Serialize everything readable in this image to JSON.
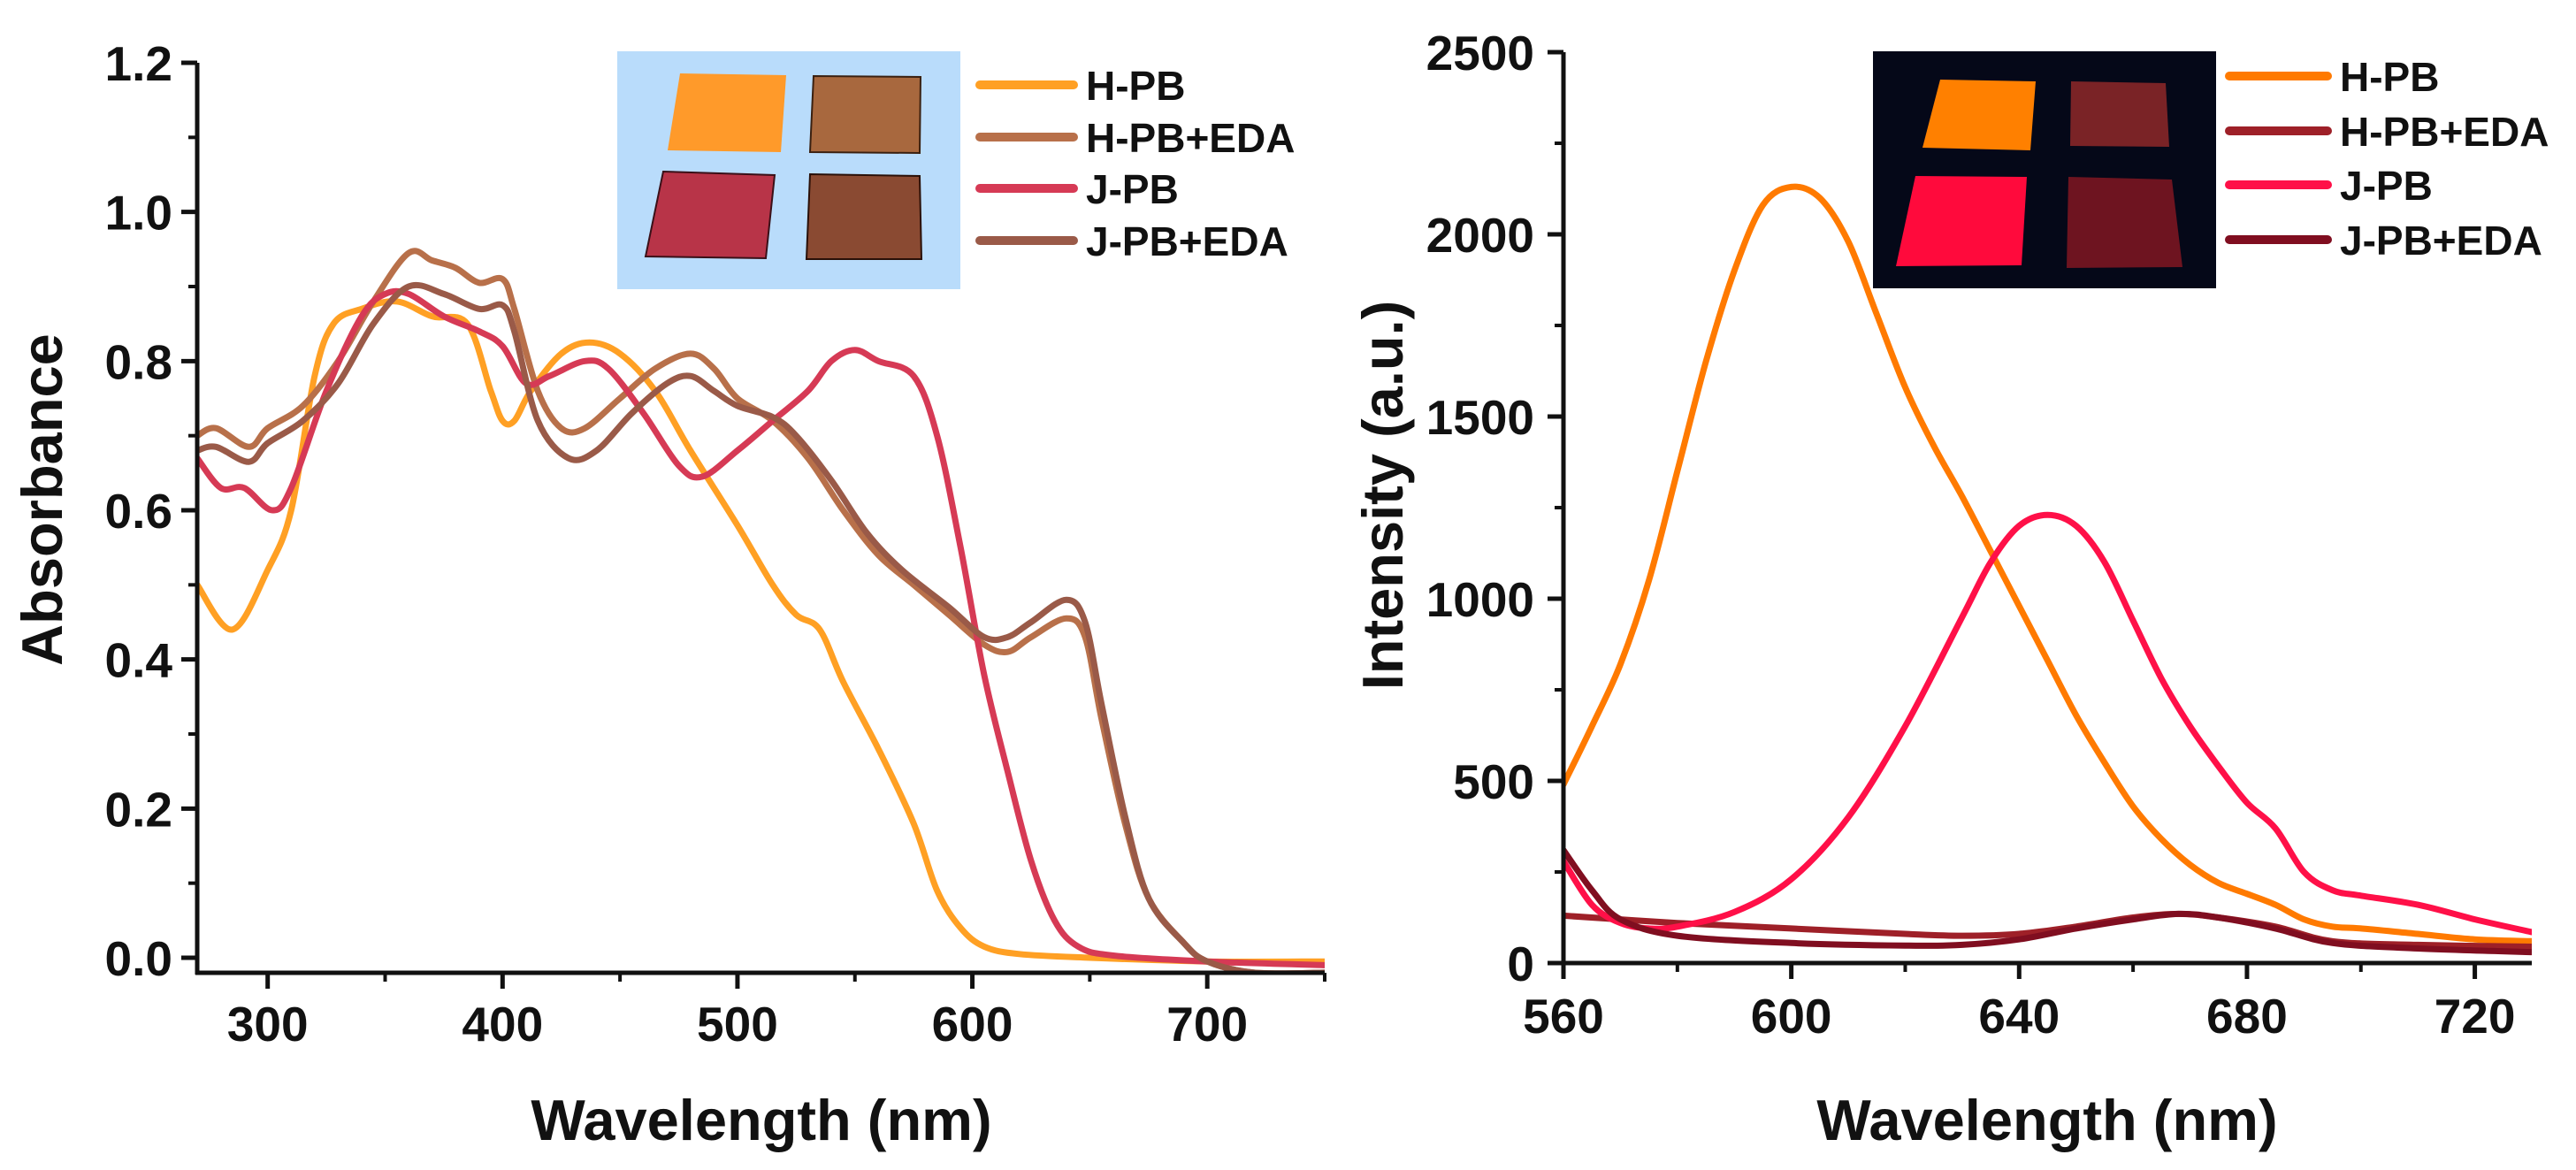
{
  "chart_data": [
    {
      "type": "line",
      "xlabel": "Wavelength (nm)",
      "ylabel": "Absorbance",
      "xlim": [
        270,
        750
      ],
      "ylim": [
        -0.02,
        1.2
      ],
      "xticks": [
        "300",
        "400",
        "500",
        "600",
        "700"
      ],
      "yticks": [
        "0.0",
        "0.2",
        "0.4",
        "0.6",
        "0.8",
        "1.0",
        "1.2"
      ],
      "grid": false,
      "legend_position": "top-right",
      "series": [
        {
          "name": "H-PB",
          "color": "#ffa024",
          "points": [
            [
              270,
              0.5
            ],
            [
              285,
              0.44
            ],
            [
              300,
              0.52
            ],
            [
              310,
              0.6
            ],
            [
              320,
              0.78
            ],
            [
              328,
              0.85
            ],
            [
              340,
              0.87
            ],
            [
              355,
              0.88
            ],
            [
              370,
              0.86
            ],
            [
              385,
              0.85
            ],
            [
              395,
              0.76
            ],
            [
              400,
              0.72
            ],
            [
              405,
              0.72
            ],
            [
              412,
              0.76
            ],
            [
              425,
              0.81
            ],
            [
              437,
              0.825
            ],
            [
              450,
              0.81
            ],
            [
              465,
              0.76
            ],
            [
              480,
              0.68
            ],
            [
              500,
              0.58
            ],
            [
              515,
              0.5
            ],
            [
              525,
              0.46
            ],
            [
              535,
              0.44
            ],
            [
              545,
              0.37
            ],
            [
              560,
              0.28
            ],
            [
              575,
              0.18
            ],
            [
              585,
              0.09
            ],
            [
              595,
              0.04
            ],
            [
              605,
              0.015
            ],
            [
              620,
              0.005
            ],
            [
              650,
              0.0
            ],
            [
              700,
              -0.005
            ],
            [
              750,
              -0.005
            ]
          ]
        },
        {
          "name": "H-PB+EDA",
          "color": "#b8704a",
          "points": [
            [
              270,
              0.7
            ],
            [
              278,
              0.71
            ],
            [
              292,
              0.685
            ],
            [
              300,
              0.71
            ],
            [
              315,
              0.74
            ],
            [
              330,
              0.8
            ],
            [
              345,
              0.88
            ],
            [
              360,
              0.945
            ],
            [
              370,
              0.935
            ],
            [
              380,
              0.925
            ],
            [
              390,
              0.905
            ],
            [
              400,
              0.91
            ],
            [
              405,
              0.87
            ],
            [
              415,
              0.76
            ],
            [
              425,
              0.71
            ],
            [
              435,
              0.71
            ],
            [
              450,
              0.75
            ],
            [
              465,
              0.79
            ],
            [
              480,
              0.81
            ],
            [
              490,
              0.79
            ],
            [
              500,
              0.75
            ],
            [
              515,
              0.72
            ],
            [
              530,
              0.67
            ],
            [
              545,
              0.6
            ],
            [
              560,
              0.54
            ],
            [
              575,
              0.5
            ],
            [
              590,
              0.46
            ],
            [
              605,
              0.42
            ],
            [
              615,
              0.41
            ],
            [
              625,
              0.43
            ],
            [
              640,
              0.455
            ],
            [
              648,
              0.43
            ],
            [
              655,
              0.32
            ],
            [
              665,
              0.18
            ],
            [
              675,
              0.08
            ],
            [
              690,
              0.02
            ],
            [
              700,
              -0.005
            ],
            [
              720,
              -0.02
            ],
            [
              750,
              -0.02
            ]
          ]
        },
        {
          "name": "J-PB",
          "color": "#d63a55",
          "points": [
            [
              270,
              0.67
            ],
            [
              280,
              0.63
            ],
            [
              290,
              0.63
            ],
            [
              302,
              0.6
            ],
            [
              310,
              0.63
            ],
            [
              325,
              0.76
            ],
            [
              340,
              0.86
            ],
            [
              350,
              0.89
            ],
            [
              360,
              0.89
            ],
            [
              375,
              0.86
            ],
            [
              390,
              0.84
            ],
            [
              400,
              0.82
            ],
            [
              410,
              0.77
            ],
            [
              420,
              0.78
            ],
            [
              435,
              0.8
            ],
            [
              445,
              0.79
            ],
            [
              460,
              0.73
            ],
            [
              475,
              0.66
            ],
            [
              485,
              0.645
            ],
            [
              500,
              0.68
            ],
            [
              515,
              0.72
            ],
            [
              530,
              0.76
            ],
            [
              540,
              0.8
            ],
            [
              550,
              0.815
            ],
            [
              560,
              0.8
            ],
            [
              575,
              0.78
            ],
            [
              585,
              0.7
            ],
            [
              595,
              0.55
            ],
            [
              605,
              0.38
            ],
            [
              615,
              0.25
            ],
            [
              625,
              0.13
            ],
            [
              635,
              0.05
            ],
            [
              645,
              0.015
            ],
            [
              660,
              0.003
            ],
            [
              700,
              -0.005
            ],
            [
              750,
              -0.01
            ]
          ]
        },
        {
          "name": "J-PB+EDA",
          "color": "#9a5a48",
          "points": [
            [
              270,
              0.68
            ],
            [
              278,
              0.685
            ],
            [
              292,
              0.665
            ],
            [
              300,
              0.69
            ],
            [
              315,
              0.72
            ],
            [
              330,
              0.77
            ],
            [
              345,
              0.85
            ],
            [
              360,
              0.9
            ],
            [
              375,
              0.89
            ],
            [
              390,
              0.87
            ],
            [
              400,
              0.875
            ],
            [
              405,
              0.84
            ],
            [
              415,
              0.72
            ],
            [
              428,
              0.67
            ],
            [
              440,
              0.68
            ],
            [
              455,
              0.73
            ],
            [
              470,
              0.77
            ],
            [
              480,
              0.78
            ],
            [
              490,
              0.76
            ],
            [
              500,
              0.74
            ],
            [
              515,
              0.725
            ],
            [
              525,
              0.7
            ],
            [
              540,
              0.64
            ],
            [
              555,
              0.57
            ],
            [
              570,
              0.52
            ],
            [
              590,
              0.47
            ],
            [
              605,
              0.43
            ],
            [
              615,
              0.43
            ],
            [
              625,
              0.45
            ],
            [
              640,
              0.48
            ],
            [
              648,
              0.45
            ],
            [
              655,
              0.34
            ],
            [
              665,
              0.19
            ],
            [
              675,
              0.08
            ],
            [
              690,
              0.02
            ],
            [
              700,
              -0.005
            ],
            [
              720,
              -0.02
            ],
            [
              750,
              -0.02
            ]
          ]
        }
      ]
    },
    {
      "type": "line",
      "xlabel": "Wavelength (nm)",
      "ylabel": "Intensity (a.u.)",
      "xlim": [
        560,
        730
      ],
      "ylim": [
        0,
        2500
      ],
      "xticks": [
        "560",
        "600",
        "640",
        "680",
        "720"
      ],
      "yticks": [
        "0",
        "500",
        "1000",
        "1500",
        "2000",
        "2500"
      ],
      "grid": false,
      "legend_position": "top-right",
      "series": [
        {
          "name": "H-PB",
          "color": "#ff7a00",
          "points": [
            [
              560,
              490
            ],
            [
              565,
              650
            ],
            [
              570,
              820
            ],
            [
              575,
              1050
            ],
            [
              580,
              1350
            ],
            [
              585,
              1650
            ],
            [
              590,
              1900
            ],
            [
              595,
              2080
            ],
            [
              600,
              2130
            ],
            [
              605,
              2100
            ],
            [
              610,
              1980
            ],
            [
              615,
              1780
            ],
            [
              620,
              1580
            ],
            [
              625,
              1420
            ],
            [
              630,
              1280
            ],
            [
              635,
              1130
            ],
            [
              640,
              980
            ],
            [
              645,
              830
            ],
            [
              650,
              680
            ],
            [
              655,
              550
            ],
            [
              660,
              430
            ],
            [
              665,
              340
            ],
            [
              670,
              270
            ],
            [
              675,
              220
            ],
            [
              680,
              190
            ],
            [
              685,
              160
            ],
            [
              690,
              120
            ],
            [
              695,
              100
            ],
            [
              700,
              95
            ],
            [
              710,
              80
            ],
            [
              720,
              65
            ],
            [
              730,
              60
            ]
          ]
        },
        {
          "name": "H-PB+EDA",
          "color": "#9e2028",
          "points": [
            [
              560,
              130
            ],
            [
              580,
              110
            ],
            [
              600,
              95
            ],
            [
              620,
              80
            ],
            [
              630,
              75
            ],
            [
              640,
              80
            ],
            [
              650,
              100
            ],
            [
              660,
              125
            ],
            [
              668,
              135
            ],
            [
              675,
              125
            ],
            [
              685,
              100
            ],
            [
              695,
              60
            ],
            [
              710,
              50
            ],
            [
              730,
              45
            ]
          ]
        },
        {
          "name": "J-PB",
          "color": "#ff1048",
          "points": [
            [
              560,
              280
            ],
            [
              565,
              160
            ],
            [
              570,
              110
            ],
            [
              575,
              95
            ],
            [
              580,
              100
            ],
            [
              590,
              140
            ],
            [
              600,
              230
            ],
            [
              610,
              400
            ],
            [
              620,
              650
            ],
            [
              630,
              950
            ],
            [
              635,
              1100
            ],
            [
              640,
              1200
            ],
            [
              645,
              1230
            ],
            [
              650,
              1200
            ],
            [
              655,
              1100
            ],
            [
              660,
              940
            ],
            [
              665,
              780
            ],
            [
              670,
              650
            ],
            [
              675,
              540
            ],
            [
              680,
              440
            ],
            [
              685,
              370
            ],
            [
              690,
              250
            ],
            [
              695,
              200
            ],
            [
              700,
              185
            ],
            [
              710,
              160
            ],
            [
              720,
              120
            ],
            [
              730,
              85
            ]
          ]
        },
        {
          "name": "J-PB+EDA",
          "color": "#800e20",
          "points": [
            [
              560,
              310
            ],
            [
              565,
              200
            ],
            [
              570,
              120
            ],
            [
              580,
              75
            ],
            [
              600,
              55
            ],
            [
              620,
              48
            ],
            [
              630,
              50
            ],
            [
              640,
              65
            ],
            [
              650,
              95
            ],
            [
              660,
              120
            ],
            [
              668,
              135
            ],
            [
              675,
              125
            ],
            [
              685,
              95
            ],
            [
              695,
              55
            ],
            [
              710,
              40
            ],
            [
              730,
              30
            ]
          ]
        }
      ]
    }
  ]
}
